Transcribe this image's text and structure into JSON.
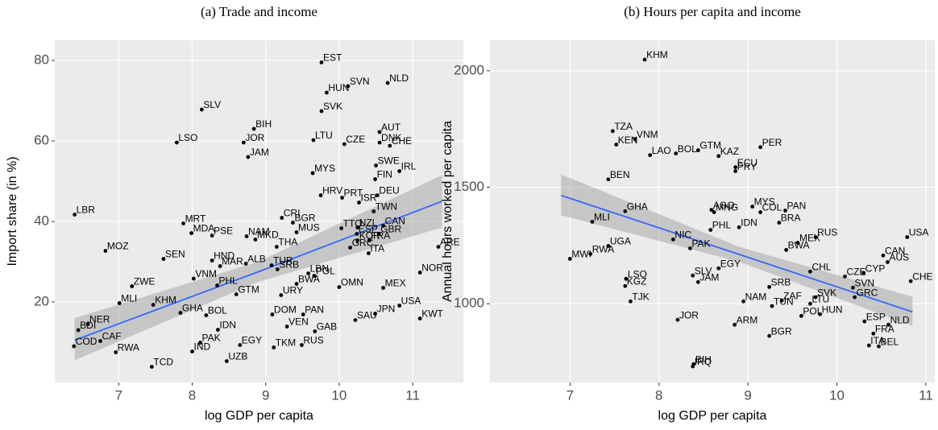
{
  "chart_data": [
    {
      "type": "scatter",
      "title": "(a) Trade and income",
      "xlabel": "log GDP per capita",
      "ylabel": "Import share (in %)",
      "xlim": [
        6.13,
        11.69
      ],
      "ylim": [
        0,
        85
      ],
      "xticks": [
        7,
        8,
        9,
        10,
        11
      ],
      "yticks": [
        20,
        40,
        60,
        80
      ],
      "grid": true,
      "color": "#000000",
      "fit_color": "#3366ff",
      "band_color": "#999999",
      "labels": [
        "EST",
        "SVN",
        "HUN",
        "NLD",
        "SVK",
        "SLV",
        "BIH",
        "JOR",
        "LSO",
        "LTU",
        "CZE",
        "AUT",
        "DNK",
        "CHE",
        "JAM",
        "SWE",
        "IRL",
        "MYS",
        "FIN",
        "HRV",
        "PRT",
        "ISR",
        "DEU",
        "LBR",
        "CRI",
        "BGR",
        "MRT",
        "MDA",
        "PSE",
        "NAM",
        "MUS",
        "TWN",
        "TTO",
        "NZL",
        "CAN",
        "ESP",
        "GBR",
        "KOR",
        "FRA",
        "GRC",
        "ITA",
        "ARE",
        "MOZ",
        "SEN",
        "MKD",
        "THA",
        "ALB",
        "HND",
        "VNM",
        "NOR",
        "OMN",
        "MEX",
        "ZWE",
        "MLI",
        "COD",
        "RWA",
        "CAF",
        "BDI",
        "NER",
        "TCD",
        "IND",
        "PAK",
        "UZB",
        "EGY",
        "TKM",
        "IDN",
        "URY",
        "DOM",
        "PAN",
        "USA",
        "KWT",
        "SAU",
        "JPN",
        "GAB",
        "VEN",
        "RUS",
        "GHA",
        "KHM",
        "BOL",
        "PHL",
        "GTM",
        "TUR",
        "SRB",
        "LBN",
        "POL",
        "BWA",
        "MAR"
      ],
      "x": [
        9.76,
        10.12,
        9.83,
        10.66,
        9.76,
        8.13,
        8.84,
        8.7,
        7.79,
        9.65,
        10.07,
        10.55,
        10.55,
        10.69,
        8.76,
        10.5,
        10.82,
        9.64,
        10.49,
        9.75,
        10.04,
        10.27,
        10.52,
        6.4,
        9.22,
        9.37,
        7.88,
        7.99,
        8.27,
        8.74,
        9.42,
        10.47,
        10.03,
        10.25,
        10.6,
        10.24,
        10.54,
        10.25,
        10.41,
        10.15,
        10.4,
        11.35,
        6.82,
        7.61,
        8.86,
        9.15,
        8.73,
        8.27,
        8.02,
        11.1,
        10.0,
        10.6,
        7.18,
        7.01,
        6.39,
        6.96,
        6.75,
        6.45,
        6.58,
        7.45,
        8.0,
        8.11,
        8.47,
        8.65,
        9.11,
        8.35,
        9.21,
        9.09,
        9.51,
        10.82,
        11.1,
        10.22,
        10.49,
        9.67,
        9.29,
        9.49,
        7.84,
        7.47,
        8.19,
        8.34,
        8.6,
        9.08,
        9.16,
        9.58,
        9.66,
        9.42,
        8.38
      ],
      "y": [
        79.5,
        73.6,
        72,
        74.4,
        67.4,
        67.8,
        63,
        59.6,
        59.6,
        60.2,
        59.2,
        62.2,
        59.6,
        58.8,
        56,
        53.9,
        52.5,
        52,
        50.5,
        46.5,
        45.9,
        44.7,
        46.5,
        41.7,
        40.9,
        39.7,
        39.5,
        37.1,
        36.5,
        36.3,
        37.3,
        42.5,
        38.3,
        38.5,
        38.9,
        36.9,
        36.9,
        35.3,
        35.3,
        33.5,
        32.1,
        33.7,
        32.7,
        30.7,
        35.5,
        33.7,
        29.5,
        30.3,
        25.8,
        27.3,
        23.7,
        23.5,
        23.9,
        19.7,
        9,
        7.5,
        10.3,
        13,
        14.5,
        3.9,
        7.7,
        9.9,
        5.3,
        9.3,
        8.7,
        13.1,
        21.7,
        16.9,
        16.9,
        19.1,
        15.9,
        15.5,
        17.1,
        12.7,
        13.9,
        9.3,
        17.3,
        19.3,
        16.7,
        24.1,
        21.9,
        29.1,
        28.1,
        27.1,
        26.5,
        24.5,
        28.9
      ],
      "fit": {
        "x": [
          6.4,
          8.9,
          11.4
        ],
        "y": [
          10.5,
          27.5,
          45
        ],
        "lower": [
          5.5,
          25,
          38.5
        ],
        "upper": [
          16,
          30,
          51.5
        ]
      }
    },
    {
      "type": "scatter",
      "title": "(b) Hours per capita and income",
      "xlabel": "log GDP per capita",
      "ylabel": "Annual hours worked  per capita",
      "xlim": [
        6.1,
        11.1
      ],
      "ylim": [
        662,
        2131
      ],
      "xticks": [
        7,
        8,
        9,
        10,
        11
      ],
      "yticks": [
        1000,
        1500,
        2000
      ],
      "grid": true,
      "color": "#000000",
      "fit_color": "#3366ff",
      "band_color": "#999999",
      "labels": [
        "KHM",
        "TZA",
        "VNM",
        "KEN",
        "LAO",
        "BOL",
        "GTM",
        "KAZ",
        "PER",
        "ECU",
        "PRY",
        "BEN",
        "GHA",
        "AGO",
        "MNG",
        "MYS",
        "COL",
        "PAN",
        "PHL",
        "IDN",
        "BRA",
        "RUS",
        "MLI",
        "NIC",
        "PAK",
        "MEX",
        "BWA",
        "UGA",
        "RWA",
        "MWI",
        "USA",
        "CAN",
        "AUS",
        "CHE",
        "CYP",
        "CZE",
        "CHL",
        "SVN",
        "GRC",
        "SLV",
        "EGY",
        "JAM",
        "LSO",
        "KGZ",
        "TJK",
        "NAM",
        "SRB",
        "ZAF",
        "TUN",
        "SVK",
        "LTU",
        "HUN",
        "POL",
        "JOR",
        "ARM",
        "BGR",
        "ESP",
        "NLD",
        "FRA",
        "ITA",
        "BEL",
        "BIH",
        "IRQ"
      ],
      "x": [
        7.84,
        7.48,
        7.73,
        7.52,
        7.9,
        8.19,
        8.44,
        8.67,
        9.14,
        8.86,
        8.86,
        7.43,
        7.62,
        8.59,
        8.62,
        9.05,
        9.14,
        9.42,
        8.58,
        8.9,
        9.35,
        9.76,
        7.25,
        8.16,
        8.35,
        9.56,
        9.43,
        7.43,
        7.23,
        7.0,
        10.79,
        10.52,
        10.57,
        10.83,
        10.3,
        10.09,
        9.7,
        10.18,
        10.2,
        8.38,
        8.67,
        8.44,
        7.63,
        7.62,
        7.68,
        8.95,
        9.24,
        9.38,
        9.27,
        9.76,
        9.7,
        9.81,
        9.6,
        8.21,
        8.85,
        9.24,
        10.31,
        10.58,
        10.41,
        10.36,
        10.47,
        8.39,
        8.38
      ],
      "y": [
        2048,
        1741,
        1707,
        1683,
        1638,
        1645,
        1659,
        1634,
        1672,
        1586,
        1569,
        1534,
        1397,
        1403,
        1393,
        1417,
        1393,
        1400,
        1317,
        1328,
        1348,
        1286,
        1352,
        1276,
        1238,
        1262,
        1231,
        1248,
        1214,
        1193,
        1286,
        1207,
        1179,
        1097,
        1131,
        1117,
        1138,
        1069,
        1028,
        1121,
        1152,
        1093,
        1107,
        1076,
        1010,
        1010,
        1072,
        1014,
        990,
        1028,
        1000,
        955,
        948,
        931,
        910,
        862,
        924,
        910,
        872,
        821,
        817,
        741,
        731
      ],
      "fit": {
        "x": [
          6.9,
          8.9,
          10.85
        ],
        "y": [
          1465,
          1212,
          965
        ],
        "lower": [
          1380,
          1180,
          905
        ],
        "upper": [
          1555,
          1245,
          1030
        ]
      }
    }
  ]
}
